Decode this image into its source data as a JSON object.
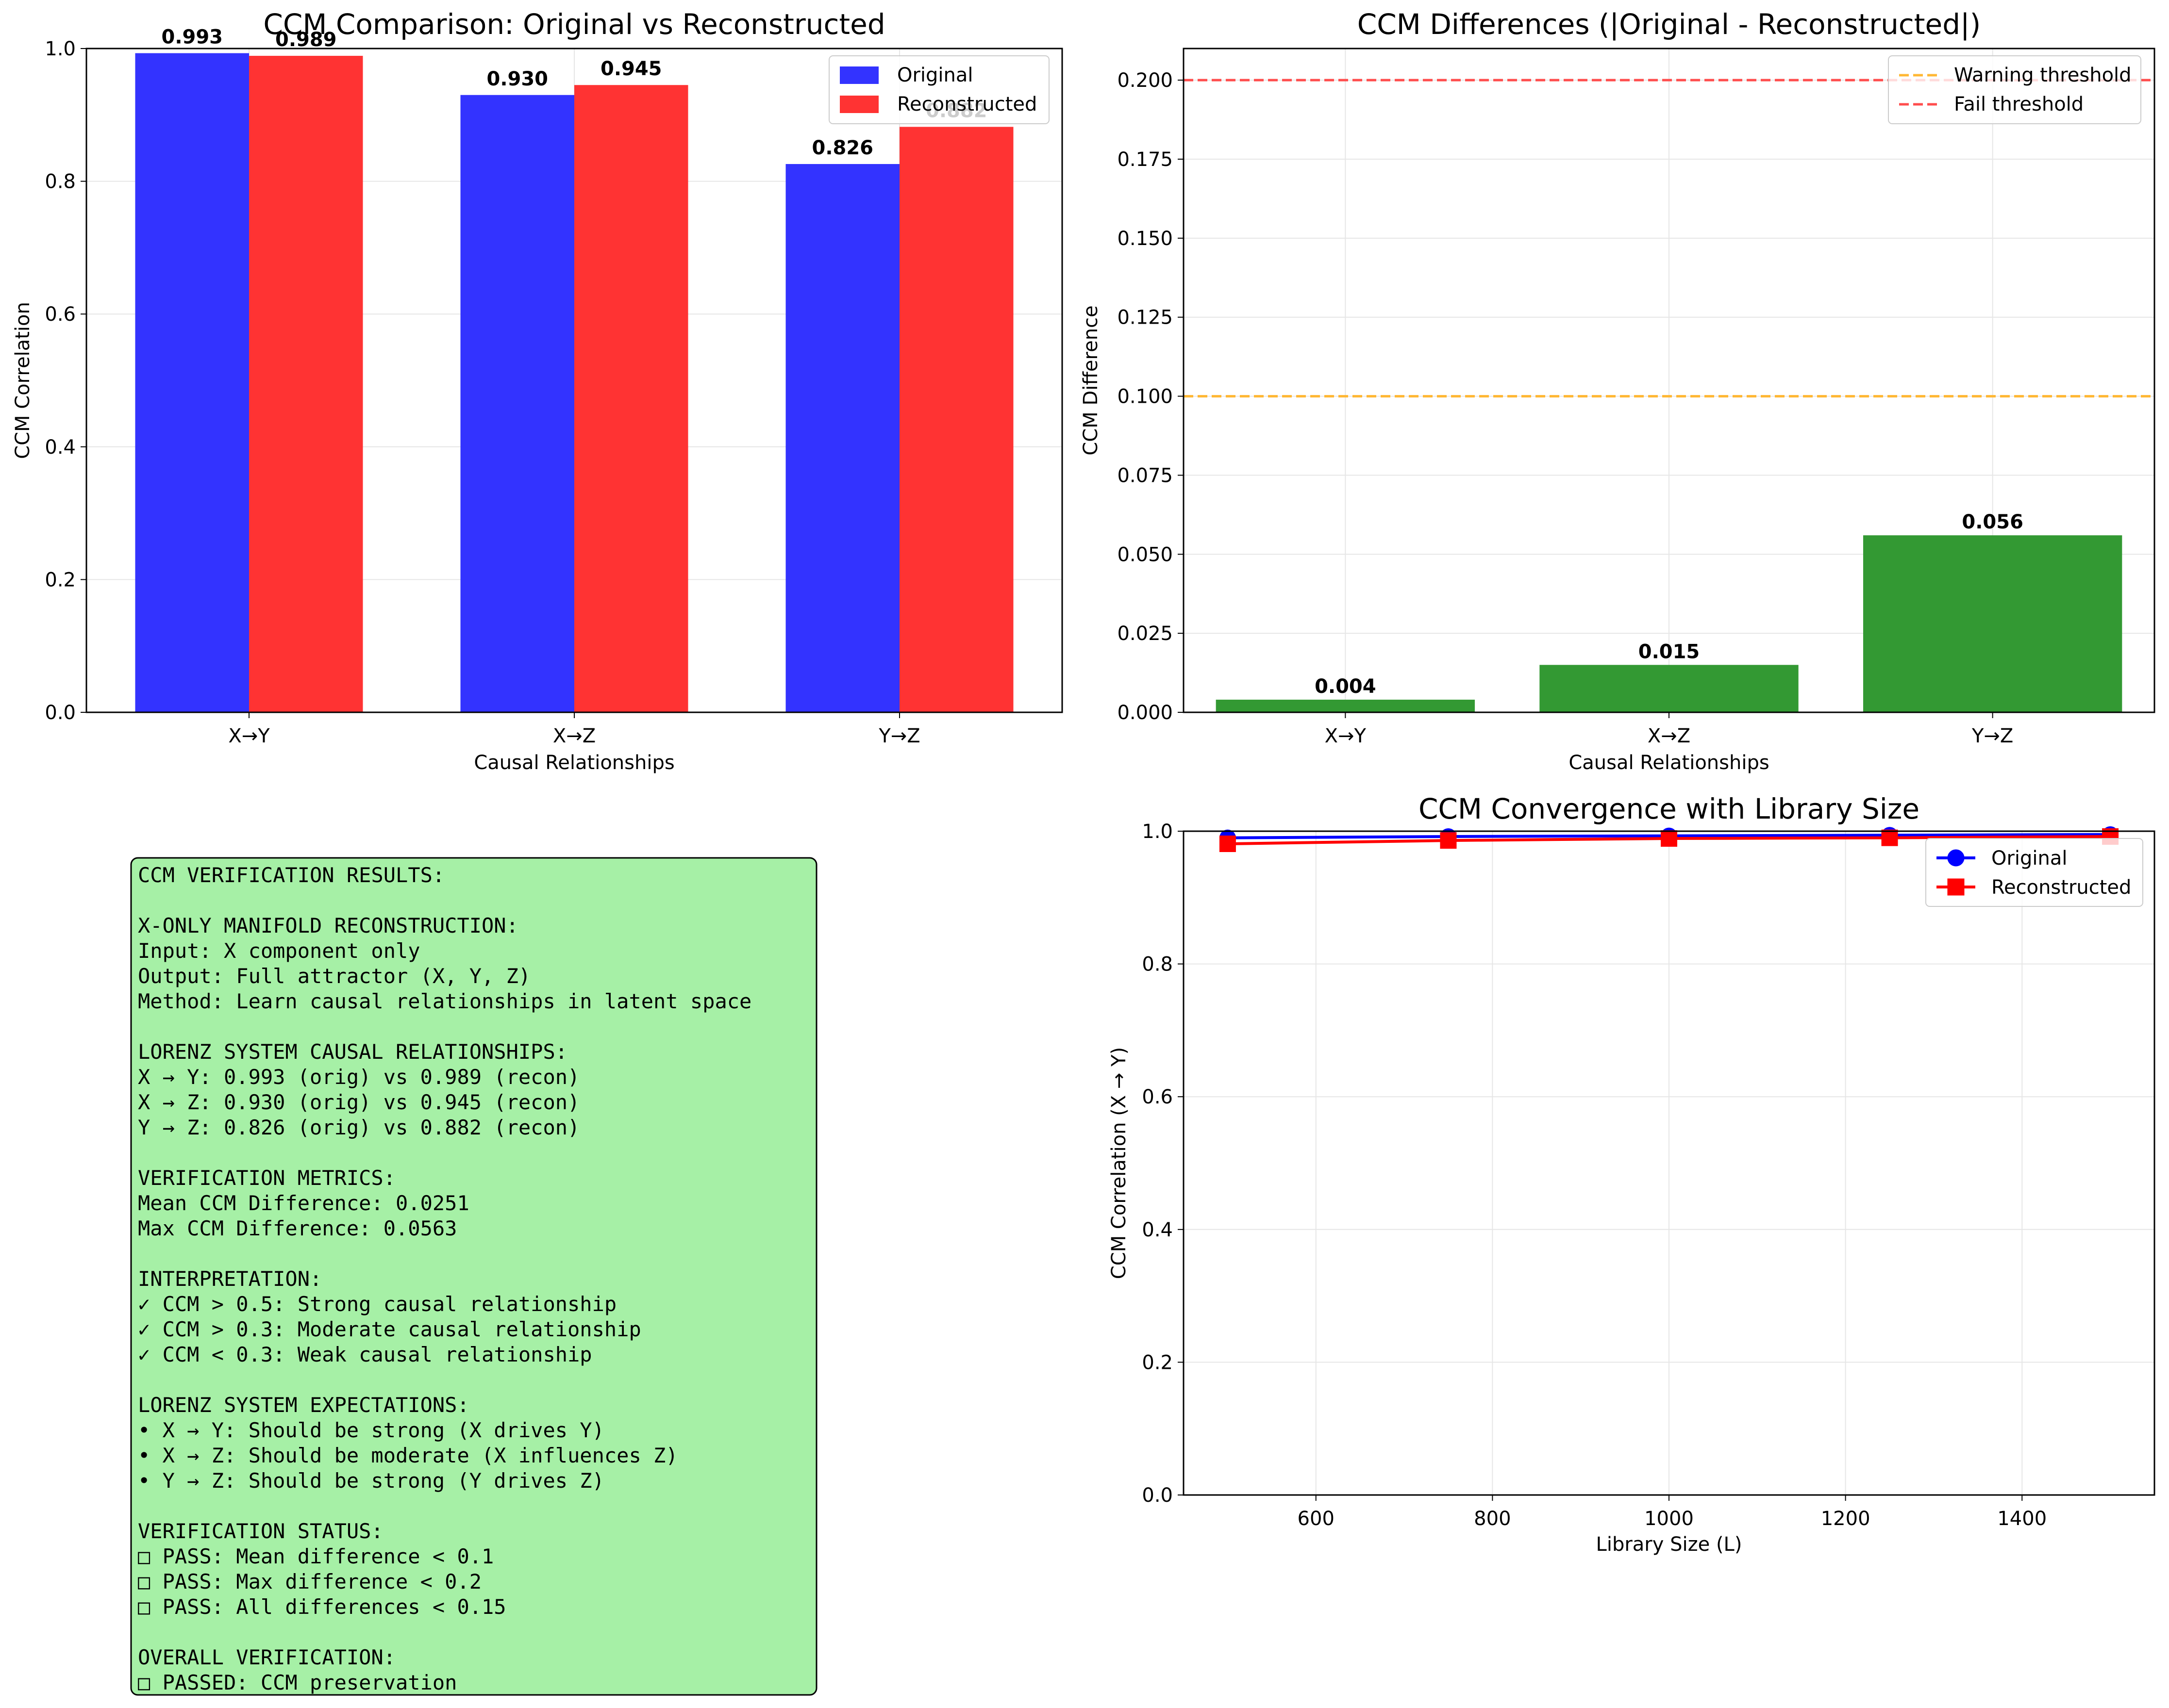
{
  "colors": {
    "original": "#3333ff",
    "reconstructed": "#ff3333",
    "diff_bar": "#339933",
    "warning": "#ffb733",
    "fail": "#ff4d4d",
    "panel_bg": "#a6f0a6",
    "grid": "#e6e6e6",
    "line_original": "#0000ff",
    "line_reconstructed": "#ff0000"
  },
  "chart_data": [
    {
      "type": "bar",
      "title": "CCM Comparison: Original vs Reconstructed",
      "xlabel": "Causal Relationships",
      "ylabel": "CCM Correlation",
      "ylim": [
        0,
        1.0
      ],
      "yticks": [
        "0.0",
        "0.2",
        "0.4",
        "0.6",
        "0.8",
        "1.0"
      ],
      "categories": [
        "X→Y",
        "X→Z",
        "Y→Z"
      ],
      "series": [
        {
          "name": "Original",
          "values": [
            0.993,
            0.93,
            0.826
          ],
          "labels": [
            "0.993",
            "0.930",
            "0.826"
          ]
        },
        {
          "name": "Reconstructed",
          "values": [
            0.989,
            0.945,
            0.882
          ],
          "labels": [
            "0.989",
            "0.945",
            "0.882"
          ]
        }
      ],
      "legend": "top-right",
      "grid": true
    },
    {
      "type": "bar",
      "title": "CCM Differences (|Original - Reconstructed|)",
      "xlabel": "Causal Relationships",
      "ylabel": "CCM Difference",
      "ylim": [
        0,
        0.21
      ],
      "yticks": [
        "0.000",
        "0.025",
        "0.050",
        "0.075",
        "0.100",
        "0.125",
        "0.150",
        "0.175",
        "0.200"
      ],
      "categories": [
        "X→Y",
        "X→Z",
        "Y→Z"
      ],
      "values": [
        0.004,
        0.015,
        0.056
      ],
      "labels": [
        "0.004",
        "0.015",
        "0.056"
      ],
      "thresholds": [
        {
          "name": "Warning threshold",
          "value": 0.1
        },
        {
          "name": "Fail threshold",
          "value": 0.2
        }
      ],
      "legend": "top-right",
      "grid": true
    },
    {
      "type": "line",
      "title": "CCM Convergence with Library Size",
      "xlabel": "Library Size (L)",
      "ylabel": "CCM Correlation (X → Y)",
      "xlim": [
        450,
        1550
      ],
      "ylim": [
        0,
        1.0
      ],
      "xticks": [
        "600",
        "800",
        "1000",
        "1200",
        "1400"
      ],
      "yticks": [
        "0.0",
        "0.2",
        "0.4",
        "0.6",
        "0.8",
        "1.0"
      ],
      "x": [
        500,
        750,
        1000,
        1250,
        1500
      ],
      "series": [
        {
          "name": "Original",
          "values": [
            0.99,
            0.992,
            0.993,
            0.994,
            0.995
          ]
        },
        {
          "name": "Reconstructed",
          "values": [
            0.981,
            0.986,
            0.989,
            0.99,
            0.992
          ]
        }
      ],
      "legend": "top-right",
      "grid": true
    }
  ],
  "summary_lines": [
    "CCM VERIFICATION RESULTS:",
    "",
    "X-ONLY MANIFOLD RECONSTRUCTION:",
    "Input: X component only",
    "Output: Full attractor (X, Y, Z)",
    "Method: Learn causal relationships in latent space",
    "",
    "LORENZ SYSTEM CAUSAL RELATIONSHIPS:",
    "X → Y: 0.993 (orig) vs 0.989 (recon)",
    "X → Z: 0.930 (orig) vs 0.945 (recon)",
    "Y → Z: 0.826 (orig) vs 0.882 (recon)",
    "",
    "VERIFICATION METRICS:",
    "Mean CCM Difference: 0.0251",
    "Max CCM Difference: 0.0563",
    "",
    "INTERPRETATION:",
    "✓ CCM > 0.5: Strong causal relationship",
    "✓ CCM > 0.3: Moderate causal relationship",
    "✓ CCM < 0.3: Weak causal relationship",
    "",
    "LORENZ SYSTEM EXPECTATIONS:",
    "• X → Y: Should be strong (X drives Y)",
    "• X → Z: Should be moderate (X influences Z)",
    "• Y → Z: Should be strong (Y drives Z)",
    "",
    "VERIFICATION STATUS:",
    "□ PASS: Mean difference < 0.1",
    "□ PASS: Max difference < 0.2",
    "□ PASS: All differences < 0.15",
    "",
    "OVERALL VERIFICATION:",
    "□ PASSED: CCM preservation"
  ]
}
